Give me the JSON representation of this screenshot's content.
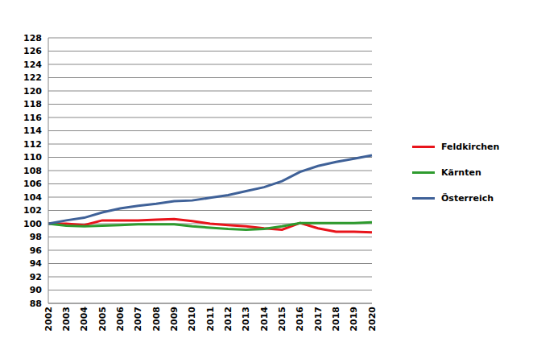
{
  "chart_data": {
    "type": "line",
    "categories": [
      "2002",
      "2003",
      "2004",
      "2005",
      "2006",
      "2007",
      "2008",
      "2009",
      "2010",
      "2011",
      "2012",
      "2013",
      "2014",
      "2015",
      "2016",
      "2017",
      "2018",
      "2019",
      "2020"
    ],
    "series": [
      {
        "name": "Feldkirchen",
        "color": "#e8141b",
        "values": [
          100,
          100.0,
          99.8,
          100.5,
          100.5,
          100.5,
          100.6,
          100.7,
          100.4,
          100.0,
          99.8,
          99.6,
          99.3,
          99.1,
          100.1,
          99.3,
          98.8,
          98.8,
          98.7
        ]
      },
      {
        "name": "Kärnten",
        "color": "#2e9b2e",
        "values": [
          100,
          99.7,
          99.6,
          99.7,
          99.8,
          99.9,
          99.9,
          99.9,
          99.6,
          99.4,
          99.2,
          99.1,
          99.2,
          99.6,
          100.1,
          100.1,
          100.1,
          100.1,
          100.2
        ]
      },
      {
        "name": "Österreich",
        "color": "#3f6198",
        "values": [
          100,
          100.5,
          100.9,
          101.7,
          102.3,
          102.7,
          103.0,
          103.4,
          103.5,
          103.9,
          104.3,
          104.9,
          105.5,
          106.4,
          107.8,
          108.7,
          109.3,
          109.8,
          110.3
        ]
      }
    ],
    "ylim": [
      88,
      128
    ],
    "yticks": [
      88,
      90,
      92,
      94,
      96,
      98,
      100,
      102,
      104,
      106,
      108,
      110,
      112,
      114,
      116,
      118,
      120,
      122,
      124,
      126,
      128
    ],
    "grid": true,
    "legend": "right"
  }
}
